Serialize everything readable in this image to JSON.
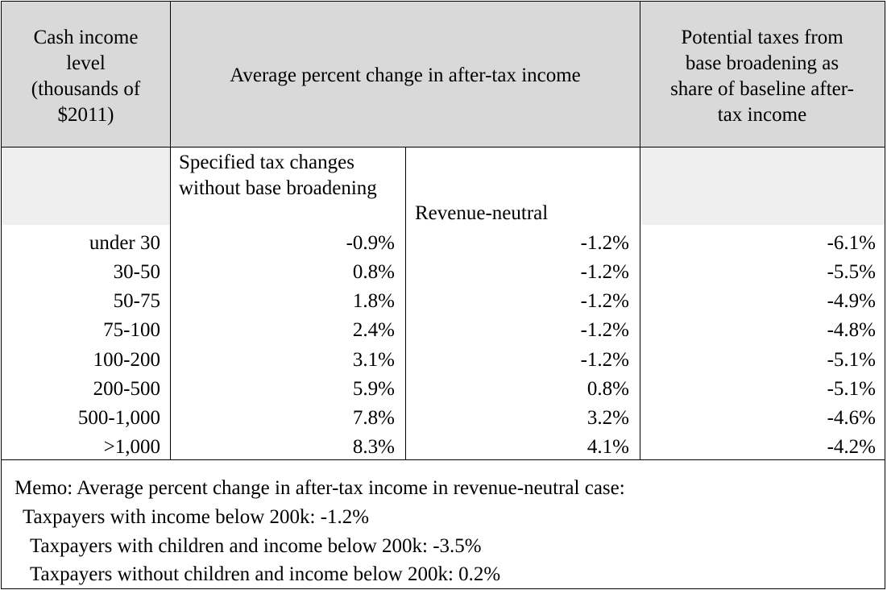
{
  "headers": {
    "col1": [
      "Cash income",
      "level",
      "(thousands of",
      "$2011)"
    ],
    "col2": "Average percent change in after-tax income",
    "col4": [
      "Potential taxes from",
      "base broadening as",
      "share of baseline after-",
      "tax income"
    ]
  },
  "subheaders": {
    "specified": "Specified tax changes without base broadening",
    "revenue_neutral": "Revenue-neutral"
  },
  "rows": [
    {
      "level": "under 30",
      "specified": "-0.9%",
      "revenue_neutral": "-1.2%",
      "potential": "-6.1%"
    },
    {
      "level": "30-50",
      "specified": "0.8%",
      "revenue_neutral": "-1.2%",
      "potential": "-5.5%"
    },
    {
      "level": "50-75",
      "specified": "1.8%",
      "revenue_neutral": "-1.2%",
      "potential": "-4.9%"
    },
    {
      "level": "75-100",
      "specified": "2.4%",
      "revenue_neutral": "-1.2%",
      "potential": "-4.8%"
    },
    {
      "level": "100-200",
      "specified": "3.1%",
      "revenue_neutral": "-1.2%",
      "potential": "-5.1%"
    },
    {
      "level": "200-500",
      "specified": "5.9%",
      "revenue_neutral": "0.8%",
      "potential": "-5.1%"
    },
    {
      "level": "500-1,000",
      "specified": "7.8%",
      "revenue_neutral": "3.2%",
      "potential": "-4.6%"
    },
    {
      "level": ">1,000",
      "specified": "8.3%",
      "revenue_neutral": "4.1%",
      "potential": "-4.2%"
    }
  ],
  "memo": {
    "title": "Memo: Average percent change in after-tax income in revenue-neutral case:",
    "line1": "Taxpayers with income below 200k: -1.2%",
    "line2": "Taxpayers with children and income below 200k: -3.5%",
    "line3": "Taxpayers without children and income below 200k: 0.2%"
  }
}
